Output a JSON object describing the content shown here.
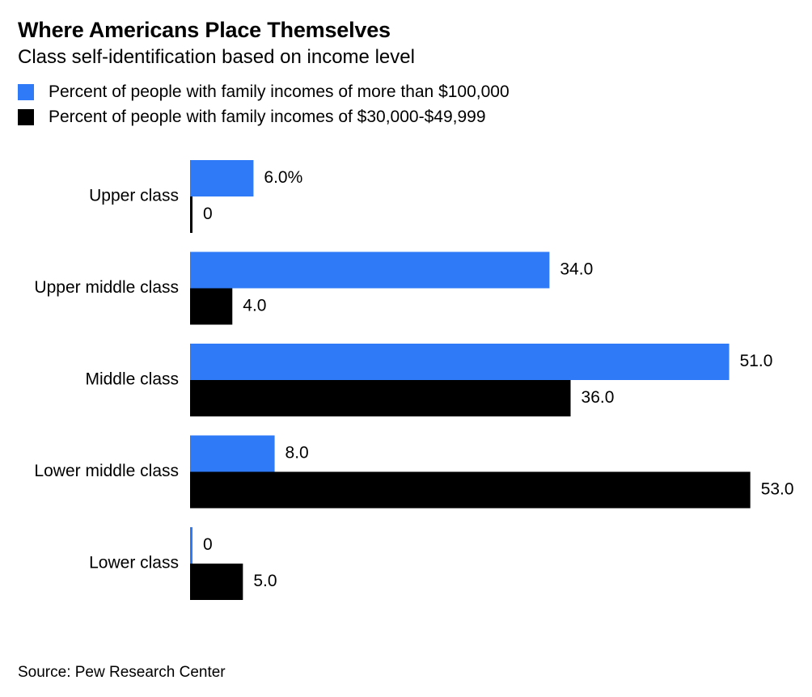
{
  "title": "Where Americans Place Themselves",
  "subtitle": "Class self-identification based on income level",
  "source": "Source: Pew Research Center",
  "colors": {
    "high_income": "#2f7af7",
    "mid_income": "#000000"
  },
  "chart_data": {
    "type": "bar",
    "orientation": "horizontal",
    "title": "Where Americans Place Themselves",
    "subtitle": "Class self-identification based on income level",
    "categories": [
      "Upper class",
      "Upper middle class",
      "Middle class",
      "Lower middle class",
      "Lower class"
    ],
    "series": [
      {
        "name": "Percent of people with family incomes of more than $100,000",
        "values": [
          6.0,
          34.0,
          51.0,
          8.0,
          0
        ],
        "labels": [
          "6.0%",
          "34.0",
          "51.0",
          "8.0",
          "0"
        ],
        "color": "#2f7af7"
      },
      {
        "name": "Percent of people with family incomes of $30,000-$49,999",
        "values": [
          0,
          4.0,
          36.0,
          53.0,
          5.0
        ],
        "labels": [
          "0",
          "4.0",
          "36.0",
          "53.0",
          "5.0"
        ],
        "color": "#000000"
      }
    ],
    "xlim": [
      0,
      53
    ],
    "grid": false,
    "legend_position": "top-left"
  }
}
